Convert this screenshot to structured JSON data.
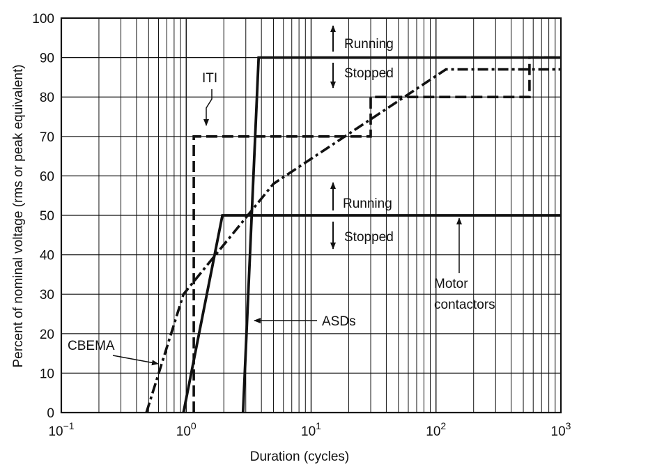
{
  "chart_data": {
    "type": "line",
    "xlabel": "Duration (cycles)",
    "ylabel": "Percent of nominal voltage (rms or peak equivalent)",
    "xscale": "log",
    "xlim": [
      0.1,
      1000
    ],
    "ylim": [
      0,
      100
    ],
    "yticks": [
      0,
      10,
      20,
      30,
      40,
      50,
      60,
      70,
      80,
      90,
      100
    ],
    "ytick_labels": [
      "0",
      "10",
      "20",
      "30",
      "40",
      "50",
      "60",
      "70",
      "80",
      "90",
      "100"
    ],
    "xticks": [
      {
        "value": 0.1,
        "base": "10",
        "exp": "−1"
      },
      {
        "value": 1,
        "base": "10",
        "exp": "0"
      },
      {
        "value": 10,
        "base": "10",
        "exp": "1"
      },
      {
        "value": 100,
        "base": "10",
        "exp": "2"
      },
      {
        "value": 1000,
        "base": "10",
        "exp": "3"
      }
    ],
    "grid": true,
    "series": [
      {
        "name": "ITI",
        "style": "dashed",
        "x": [
          1.15,
          1.15,
          30,
          30,
          560,
          560,
          1000
        ],
        "y": [
          0,
          70,
          70,
          80,
          80,
          90,
          90
        ]
      },
      {
        "name": "CBEMA",
        "style": "dash-dot",
        "x": [
          0.48,
          0.95,
          5,
          120,
          1000
        ],
        "y": [
          0,
          30,
          58,
          87,
          87
        ]
      },
      {
        "name": "ASDs",
        "style": "solid",
        "x": [
          2.85,
          3.8,
          1000
        ],
        "y": [
          0,
          90,
          90
        ]
      },
      {
        "name": "Motor contactors",
        "style": "solid",
        "x": [
          0.95,
          1.95,
          1000
        ],
        "y": [
          0,
          50,
          50
        ]
      }
    ],
    "annotations": [
      {
        "id": "running-upper",
        "text": "Running"
      },
      {
        "id": "stopped-upper",
        "text": "Stopped"
      },
      {
        "id": "running-lower",
        "text": "Running"
      },
      {
        "id": "stopped-lower",
        "text": "Stopped"
      },
      {
        "id": "iti",
        "text": "ITI"
      },
      {
        "id": "cbema",
        "text": "CBEMA"
      },
      {
        "id": "asds",
        "text": "ASDs"
      },
      {
        "id": "motor-line1",
        "text": "Motor"
      },
      {
        "id": "motor-line2",
        "text": "contactors"
      }
    ],
    "colors": {
      "ink": "#111111",
      "grid": "#111111",
      "background": "#ffffff"
    }
  }
}
